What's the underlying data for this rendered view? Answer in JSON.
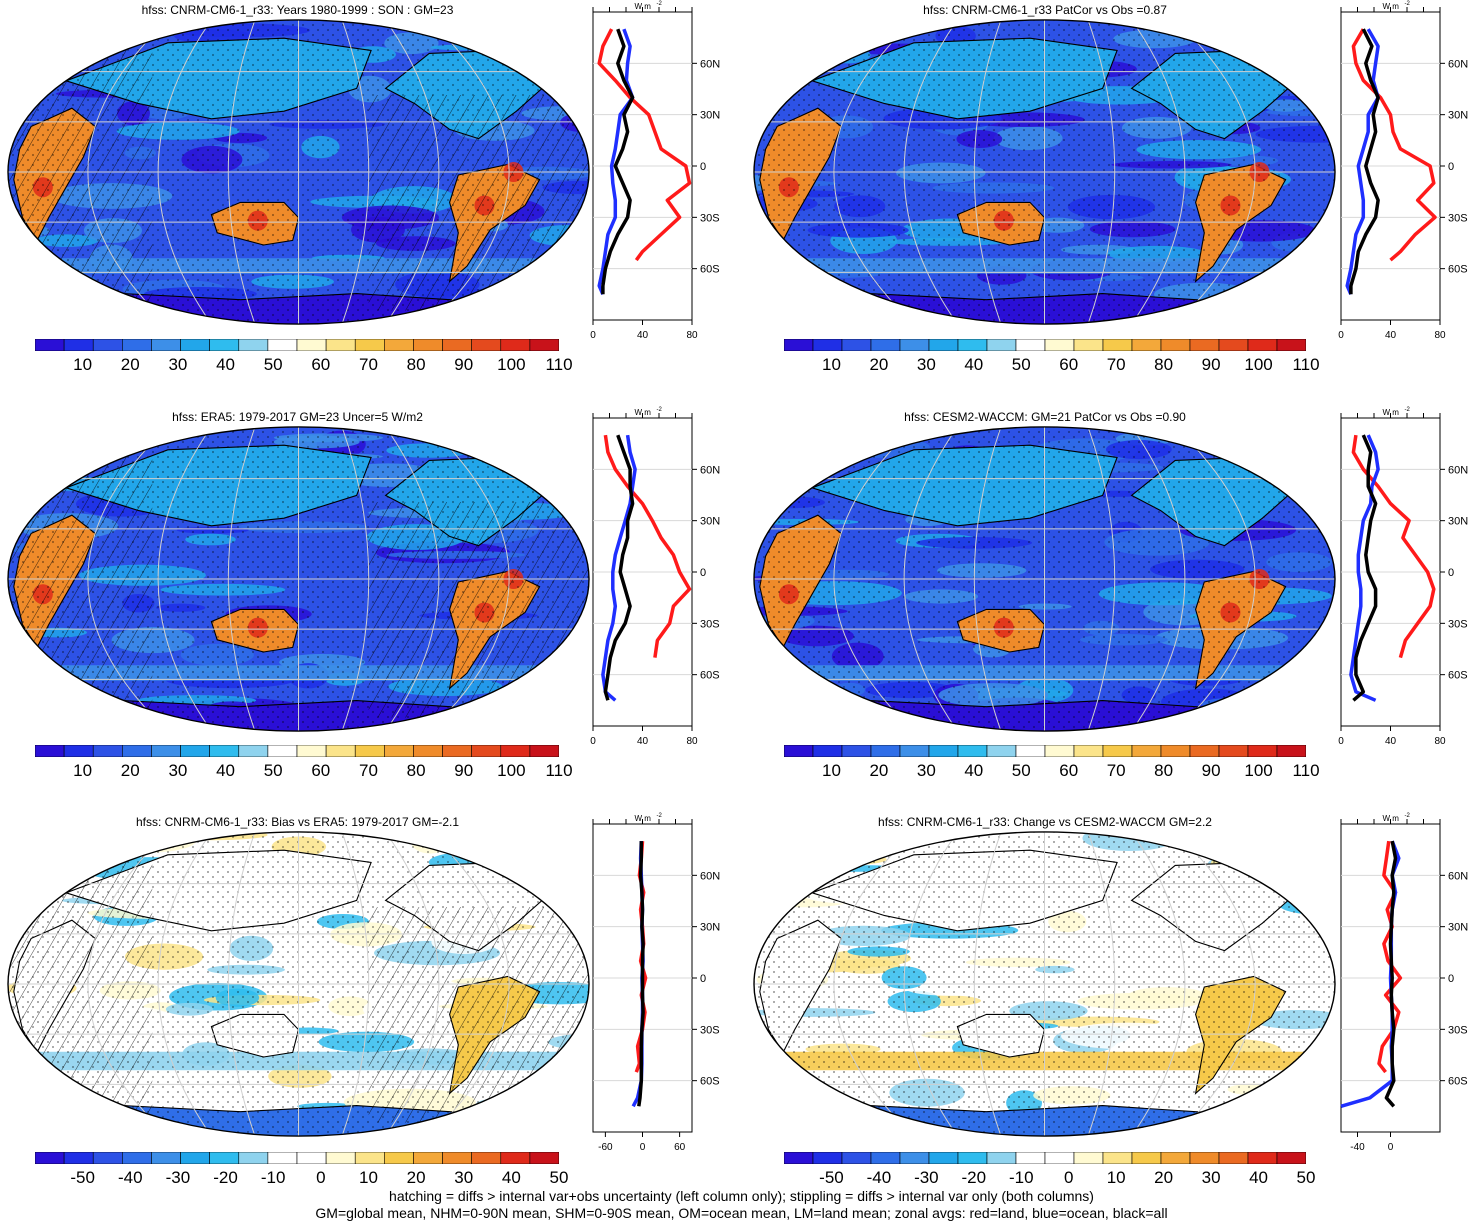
{
  "colors": {
    "abs_scale": [
      "#2a0fd6",
      "#1f2fe6",
      "#2d52e6",
      "#2f6ee8",
      "#3d8fe8",
      "#22a6ea",
      "#2fbcee",
      "#8fd3ee",
      "#ffffff",
      "#fffad2",
      "#fbe48a",
      "#f6c94a",
      "#f3a83a",
      "#ef8b2a",
      "#ea6a22",
      "#e44a1e",
      "#df2a1a",
      "#c8121a"
    ],
    "diff_scale": [
      "#2a0fd6",
      "#1f2fe6",
      "#2d52e6",
      "#2f6ee8",
      "#3d8fe8",
      "#22a6ea",
      "#2fbcee",
      "#8fd3ee",
      "#ffffff",
      "#ffffff",
      "#fffad2",
      "#fbe48a",
      "#f6c94a",
      "#f3a83a",
      "#ef8b2a",
      "#ea6a22",
      "#df2a1a",
      "#c8121a"
    ],
    "land": "#e0e0e0",
    "zonal_land": "#ff1a1a",
    "zonal_ocean": "#1f2fff",
    "zonal_all": "#000000"
  },
  "abs_ticks": [
    "10",
    "20",
    "30",
    "40",
    "50",
    "60",
    "70",
    "80",
    "90",
    "100",
    "110"
  ],
  "diff_ticks": [
    "-50",
    "-40",
    "-30",
    "-20",
    "-10",
    "0",
    "10",
    "20",
    "30",
    "40",
    "50"
  ],
  "lat_labels": [
    "60N",
    "30N",
    "0",
    "30S",
    "60S"
  ],
  "units": "W m",
  "units_sup": "-2",
  "panels": [
    {
      "id": "p1",
      "title": "hfss: CNRM-CM6-1_r33: Years 1980-1999 : SON : GM=23",
      "kind": "abs",
      "xticks": [
        "0",
        "40",
        "80"
      ],
      "hatch": true,
      "stipple": true
    },
    {
      "id": "p2",
      "title": "hfss: CNRM-CM6-1_r33 PatCor vs Obs =0.87",
      "kind": "abs",
      "xticks": [
        "0",
        "40",
        "80"
      ],
      "hatch": false,
      "stipple": true
    },
    {
      "id": "p3",
      "title": "hfss: ERA5: 1979-2017 GM=23 Uncer=5 W/m2",
      "kind": "abs",
      "xticks": [
        "0",
        "40",
        "80"
      ],
      "hatch": true,
      "stipple": true
    },
    {
      "id": "p4",
      "title": "hfss: CESM2-WACCM: GM=21 PatCor vs Obs =0.90",
      "kind": "abs",
      "xticks": [
        "0",
        "40",
        "80"
      ],
      "hatch": false,
      "stipple": true
    },
    {
      "id": "p5",
      "title": "hfss: CNRM-CM6-1_r33: Bias vs ERA5: 1979-2017  GM=-2.1",
      "kind": "diff",
      "xticks": [
        "-60",
        "0",
        "60"
      ],
      "hatch": true,
      "stipple": true
    },
    {
      "id": "p6",
      "title": "hfss: CNRM-CM6-1_r33: Change vs CESM2-WACCM GM=2.2",
      "kind": "diff",
      "xticks": [
        "-40",
        "0"
      ],
      "hatch": false,
      "stipple": true
    }
  ],
  "chart_data": [
    {
      "type": "line",
      "panel": "p1",
      "title": "hfss: CNRM-CM6-1_r33: Years 1980-1999 : SON : GM=23",
      "ylabel": "",
      "xlabel": "W m-2",
      "xlim": [
        0,
        80
      ],
      "ylim": [
        -90,
        90
      ],
      "y_ticks": [
        "60N",
        "30N",
        "0",
        "30S",
        "60S"
      ],
      "series": [
        {
          "lat": [
            80,
            70,
            60,
            50,
            40,
            30,
            20,
            10,
            0,
            -10,
            -20,
            -30,
            -40,
            -50,
            -55,
            -60,
            -65
          ],
          "land": [
            15,
            8,
            5,
            18,
            30,
            45,
            50,
            55,
            75,
            78,
            60,
            70,
            55,
            40,
            35,
            null,
            null
          ]
        },
        {
          "lat": [
            80,
            70,
            60,
            50,
            40,
            30,
            20,
            10,
            0,
            -10,
            -20,
            -30,
            -40,
            -50,
            -60,
            -70,
            -75
          ],
          "ocean": [
            25,
            30,
            28,
            27,
            32,
            22,
            20,
            18,
            15,
            16,
            18,
            18,
            12,
            10,
            8,
            5,
            8
          ]
        },
        {
          "lat": [
            80,
            70,
            60,
            50,
            40,
            30,
            20,
            10,
            0,
            -10,
            -20,
            -30,
            -40,
            -50,
            -60,
            -70,
            -75
          ],
          "all": [
            20,
            25,
            20,
            25,
            32,
            25,
            28,
            24,
            18,
            24,
            30,
            28,
            20,
            14,
            10,
            8,
            8
          ]
        }
      ]
    },
    {
      "type": "line",
      "panel": "p2",
      "title": "hfss: CNRM-CM6-1_r33 PatCor vs Obs =0.87",
      "xlabel": "W m-2",
      "xlim": [
        0,
        80
      ],
      "ylim": [
        -90,
        90
      ],
      "y_ticks": [
        "60N",
        "30N",
        "0",
        "30S",
        "60S"
      ],
      "series": [
        {
          "lat": [
            80,
            70,
            60,
            50,
            40,
            30,
            20,
            10,
            0,
            -10,
            -20,
            -30,
            -40,
            -50,
            -55
          ],
          "land": [
            18,
            10,
            12,
            18,
            32,
            40,
            42,
            48,
            72,
            75,
            62,
            76,
            60,
            48,
            40
          ]
        },
        {
          "lat": [
            80,
            70,
            60,
            50,
            40,
            30,
            20,
            10,
            0,
            -10,
            -20,
            -30,
            -40,
            -50,
            -60,
            -70,
            -75
          ],
          "ocean": [
            22,
            30,
            28,
            26,
            30,
            22,
            22,
            18,
            14,
            16,
            18,
            18,
            12,
            10,
            8,
            5,
            8
          ]
        },
        {
          "lat": [
            80,
            70,
            60,
            50,
            40,
            30,
            20,
            10,
            0,
            -10,
            -20,
            -30,
            -40,
            -50,
            -60,
            -70,
            -75
          ],
          "all": [
            18,
            25,
            20,
            24,
            30,
            26,
            28,
            24,
            20,
            24,
            30,
            28,
            20,
            14,
            12,
            8,
            8
          ]
        }
      ]
    },
    {
      "type": "line",
      "panel": "p3",
      "title": "hfss: ERA5: 1979-2017 GM=23 Uncer=5 W/m2",
      "xlabel": "W m-2",
      "xlim": [
        0,
        80
      ],
      "ylim": [
        -90,
        90
      ],
      "y_ticks": [
        "60N",
        "30N",
        "0",
        "30S",
        "60S"
      ],
      "series": [
        {
          "lat": [
            80,
            70,
            60,
            50,
            40,
            30,
            20,
            10,
            0,
            -10,
            -20,
            -30,
            -40,
            -50
          ],
          "land": [
            10,
            12,
            18,
            28,
            40,
            48,
            55,
            65,
            70,
            78,
            65,
            62,
            52,
            50
          ]
        },
        {
          "lat": [
            80,
            70,
            60,
            50,
            40,
            30,
            20,
            10,
            0,
            -10,
            -20,
            -30,
            -40,
            -50,
            -60,
            -70,
            -75
          ],
          "ocean": [
            28,
            30,
            34,
            32,
            30,
            26,
            22,
            18,
            16,
            16,
            18,
            16,
            12,
            10,
            8,
            10,
            18
          ]
        },
        {
          "lat": [
            80,
            70,
            60,
            50,
            40,
            30,
            20,
            10,
            0,
            -10,
            -20,
            -30,
            -40,
            -50,
            -60,
            -70,
            -75
          ],
          "all": [
            20,
            25,
            30,
            30,
            32,
            28,
            28,
            24,
            22,
            26,
            30,
            26,
            18,
            14,
            12,
            10,
            12
          ]
        }
      ]
    },
    {
      "type": "line",
      "panel": "p4",
      "title": "hfss: CESM2-WACCM: GM=21 PatCor vs Obs =0.90",
      "xlabel": "W m-2",
      "xlim": [
        0,
        80
      ],
      "ylim": [
        -90,
        90
      ],
      "y_ticks": [
        "60N",
        "30N",
        "0",
        "30S",
        "60S"
      ],
      "series": [
        {
          "lat": [
            80,
            70,
            60,
            50,
            40,
            30,
            20,
            10,
            0,
            -10,
            -20,
            -30,
            -40,
            -50
          ],
          "land": [
            12,
            10,
            18,
            30,
            40,
            55,
            50,
            60,
            70,
            75,
            72,
            62,
            52,
            48
          ]
        },
        {
          "lat": [
            80,
            70,
            60,
            50,
            40,
            30,
            20,
            10,
            0,
            -10,
            -20,
            -30,
            -40,
            -50,
            -60,
            -70,
            -75
          ],
          "ocean": [
            22,
            28,
            30,
            25,
            24,
            18,
            16,
            14,
            14,
            16,
            16,
            14,
            12,
            10,
            8,
            12,
            28
          ]
        },
        {
          "lat": [
            80,
            70,
            60,
            50,
            40,
            30,
            20,
            10,
            0,
            -10,
            -20,
            -30,
            -40,
            -50,
            -60,
            -70,
            -75
          ],
          "all": [
            18,
            24,
            22,
            22,
            28,
            24,
            22,
            20,
            22,
            28,
            28,
            22,
            16,
            12,
            12,
            18,
            10
          ]
        }
      ]
    },
    {
      "type": "line",
      "panel": "p5",
      "title": "hfss: CNRM-CM6-1_r33: Bias vs ERA5: 1979-2017  GM=-2.1",
      "xlabel": "W m-2",
      "xlim": [
        -80,
        80
      ],
      "ylim": [
        -90,
        90
      ],
      "y_ticks": [
        "60N",
        "30N",
        "0",
        "30S",
        "60S"
      ],
      "series": [
        {
          "lat": [
            80,
            70,
            60,
            50,
            40,
            30,
            20,
            10,
            0,
            -10,
            -20,
            -30,
            -40,
            -50,
            -55
          ],
          "land": [
            0,
            -2,
            -5,
            2,
            -3,
            0,
            2,
            -3,
            5,
            -2,
            4,
            0,
            -8,
            -5,
            -10
          ]
        },
        {
          "lat": [
            80,
            70,
            60,
            50,
            40,
            30,
            20,
            10,
            0,
            -10,
            -20,
            -30,
            -40,
            -50,
            -60,
            -70,
            -75
          ],
          "ocean": [
            -2,
            -3,
            -2,
            -1,
            0,
            -1,
            0,
            1,
            -1,
            0,
            0,
            -1,
            -1,
            -1,
            -2,
            -8,
            -15
          ]
        },
        {
          "lat": [
            80,
            70,
            60,
            50,
            40,
            30,
            20,
            10,
            0,
            -10,
            -20,
            -30,
            -40,
            -50,
            -60,
            -70,
            -75
          ],
          "all": [
            -2,
            -2,
            -3,
            -1,
            0,
            -1,
            1,
            0,
            0,
            0,
            1,
            -1,
            -2,
            -2,
            -2,
            -4,
            -6
          ]
        }
      ]
    },
    {
      "type": "line",
      "panel": "p6",
      "title": "hfss: CNRM-CM6-1_r33: Change vs CESM2-WACCM GM=2.2",
      "xlabel": "W m-2",
      "xlim": [
        -60,
        60
      ],
      "ylim": [
        -90,
        90
      ],
      "y_ticks": [
        "60N",
        "30N",
        "0",
        "30S",
        "60S"
      ],
      "series": [
        {
          "lat": [
            80,
            70,
            60,
            50,
            40,
            30,
            20,
            10,
            0,
            -10,
            -20,
            -30,
            -40,
            -50,
            -55
          ],
          "land": [
            -2,
            -5,
            -8,
            6,
            -4,
            2,
            -8,
            -3,
            12,
            -6,
            10,
            4,
            -10,
            -14,
            -6
          ]
        },
        {
          "lat": [
            80,
            70,
            60,
            50,
            40,
            30,
            20,
            10,
            0,
            -10,
            -20,
            -30,
            -40,
            -50,
            -60,
            -70,
            -75
          ],
          "ocean": [
            2,
            10,
            2,
            6,
            2,
            1,
            1,
            1,
            0,
            1,
            2,
            2,
            1,
            2,
            2,
            -25,
            -60
          ]
        },
        {
          "lat": [
            80,
            70,
            60,
            50,
            40,
            30,
            20,
            10,
            0,
            -10,
            -20,
            -30,
            -40,
            -50,
            -60,
            -70,
            -75
          ],
          "all": [
            2,
            6,
            2,
            4,
            2,
            1,
            0,
            1,
            2,
            1,
            2,
            4,
            2,
            2,
            4,
            -5,
            4
          ]
        }
      ]
    }
  ],
  "footer": {
    "line1": "hatching = diffs > internal var+obs uncertainty (left column only); stippling = diffs > internal var only (both columns)",
    "line2": "GM=global mean, NHM=0-90N mean, SHM=0-90S mean, OM=ocean mean, LM=land mean; zonal avgs: red=land, blue=ocean, black=all"
  }
}
